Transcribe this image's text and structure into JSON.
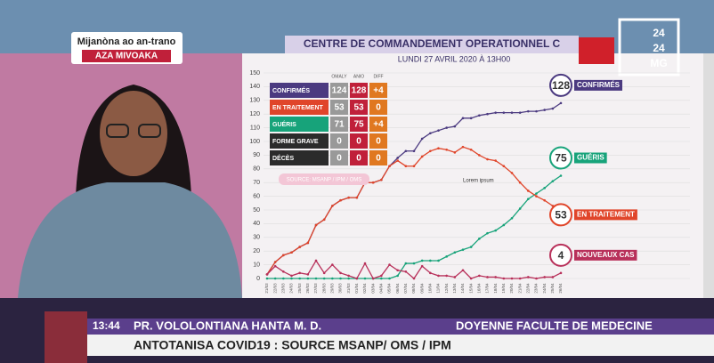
{
  "broadcast": {
    "banner_top": "Mijanòna ao an-trano",
    "banner_bottom": "AZA MIVOAKA",
    "logo": [
      "24",
      "24",
      "MG"
    ],
    "time": "13:44",
    "speaker": "PR. VOLOLONTIANA  HANTA M. D.",
    "role": "DOYENNE FACULTE DE MEDECINE",
    "ticker": "ANTOTANISA COVID19 : SOURCE MSANP/ OMS / IPM"
  },
  "slide": {
    "title": "CENTRE DE COMMANDEMENT OPERATIONNEL C",
    "date": "LUNDI 27 AVRIL 2020 À 13H00",
    "source": "SOURCE: MSANP / IPM / OMS",
    "annotation": "Lorem ipsum",
    "table": {
      "header": [
        "OMALY",
        "ANIO",
        "DIFF"
      ],
      "rows": [
        [
          "CONFIRMÉS",
          "124",
          "128",
          "+4"
        ],
        [
          "EN TRAITEMENT",
          "53",
          "53",
          "0"
        ],
        [
          "GUÉRIS",
          "71",
          "75",
          "+4"
        ],
        [
          "FORME GRAVE",
          "0",
          "0",
          "0"
        ],
        [
          "DÉCÈS",
          "0",
          "0",
          "0"
        ]
      ]
    }
  },
  "chart_data": {
    "type": "line",
    "ylim": [
      0,
      150
    ],
    "yticks": [
      0,
      10,
      20,
      30,
      40,
      50,
      60,
      70,
      80,
      90,
      100,
      110,
      120,
      130,
      140,
      150
    ],
    "grid": true,
    "categories": [
      "21/03",
      "22/03",
      "23/03",
      "24/03",
      "25/03",
      "26/03",
      "27/03",
      "28/03",
      "29/03",
      "30/03",
      "31/03",
      "01/04",
      "02/04",
      "03/04",
      "04/04",
      "05/04",
      "06/04",
      "07/04",
      "08/04",
      "09/04",
      "10/04",
      "11/04",
      "12/04",
      "13/04",
      "14/04",
      "15/04",
      "16/04",
      "17/04",
      "18/04",
      "19/04",
      "20/04",
      "21/04",
      "22/04",
      "23/04",
      "24/04",
      "25/04",
      "26/04"
    ],
    "series": [
      {
        "name": "CONFIRMÉS",
        "color": "#4b3a80",
        "values": [
          3,
          12,
          17,
          19,
          23,
          26,
          39,
          43,
          53,
          57,
          59,
          59,
          70,
          70,
          72,
          82,
          88,
          93,
          93,
          102,
          106,
          108,
          110,
          111,
          117,
          117,
          119,
          120,
          121,
          121,
          121,
          121,
          122,
          122,
          123,
          124,
          128
        ]
      },
      {
        "name": "GUÉRIS",
        "color": "#17a37a",
        "values": [
          0,
          0,
          0,
          0,
          0,
          0,
          0,
          0,
          0,
          0,
          0,
          0,
          0,
          0,
          0,
          0,
          2,
          11,
          11,
          13,
          13,
          13,
          16,
          19,
          21,
          23,
          29,
          33,
          35,
          39,
          44,
          51,
          58,
          62,
          66,
          71,
          75
        ]
      },
      {
        "name": "EN TRAITEMENT",
        "color": "#e0452a",
        "values": [
          3,
          12,
          17,
          19,
          23,
          26,
          39,
          43,
          53,
          57,
          59,
          59,
          70,
          70,
          72,
          82,
          86,
          82,
          82,
          89,
          93,
          95,
          94,
          92,
          96,
          94,
          90,
          87,
          86,
          82,
          77,
          70,
          64,
          60,
          57,
          53,
          53
        ]
      },
      {
        "name": "NOUVEAUX CAS",
        "color": "#b8305a",
        "values": [
          3,
          9,
          5,
          2,
          4,
          3,
          13,
          4,
          10,
          4,
          2,
          0,
          11,
          0,
          2,
          10,
          6,
          5,
          0,
          9,
          4,
          2,
          2,
          1,
          6,
          0,
          2,
          1,
          1,
          0,
          0,
          0,
          1,
          0,
          1,
          1,
          4
        ]
      }
    ]
  }
}
